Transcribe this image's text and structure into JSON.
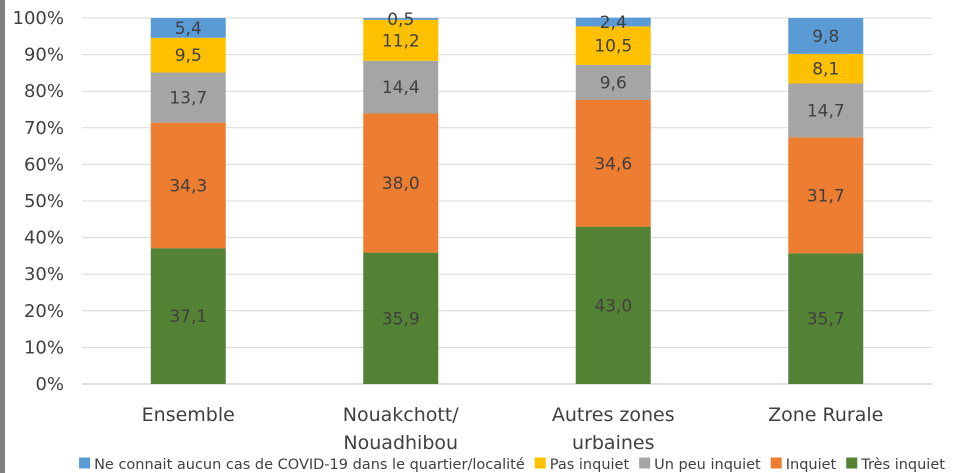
{
  "chart_data": {
    "type": "bar",
    "stacked": true,
    "percent": true,
    "title": "",
    "xlabel": "",
    "ylabel": "",
    "ylim": [
      0,
      100
    ],
    "yticks": [
      "0%",
      "10%",
      "20%",
      "30%",
      "40%",
      "50%",
      "60%",
      "70%",
      "80%",
      "90%",
      "100%"
    ],
    "grid": true,
    "legend_position": "bottom",
    "categories": [
      [
        "Ensemble"
      ],
      [
        "Nouakchott/",
        "Nouadhibou"
      ],
      [
        "Autres zones",
        "urbaines"
      ],
      [
        "Zone Rurale"
      ]
    ],
    "series": [
      {
        "name": "Très inquiet",
        "color": "#548235",
        "values": [
          37.1,
          35.9,
          43.0,
          35.7
        ],
        "labels": [
          "37,1",
          "35,9",
          "43,0",
          "35,7"
        ]
      },
      {
        "name": "Inquiet",
        "color": "#ed7d31",
        "values": [
          34.3,
          38.0,
          34.6,
          31.7
        ],
        "labels": [
          "34,3",
          "38,0",
          "34,6",
          "31,7"
        ]
      },
      {
        "name": "Un peu inquiet",
        "color": "#a5a5a5",
        "values": [
          13.7,
          14.4,
          9.6,
          14.7
        ],
        "labels": [
          "13,7",
          "14,4",
          "9,6",
          "14,7"
        ]
      },
      {
        "name": "Pas inquiet",
        "color": "#ffc000",
        "values": [
          9.5,
          11.2,
          10.5,
          8.1
        ],
        "labels": [
          "9,5",
          "11,2",
          "10,5",
          "8,1"
        ]
      },
      {
        "name": "Ne connait aucun cas de COVID-19 dans le quartier/localité",
        "color": "#5b9bd5",
        "values": [
          5.4,
          0.5,
          2.4,
          9.8
        ],
        "labels": [
          "5,4",
          "0,5",
          "2,4",
          "9,8"
        ]
      }
    ],
    "legend_order": [
      "Ne connait aucun cas de COVID-19 dans le quartier/localité",
      "Pas inquiet",
      "Un peu inquiet",
      "Inquiet",
      "Très inquiet"
    ]
  }
}
